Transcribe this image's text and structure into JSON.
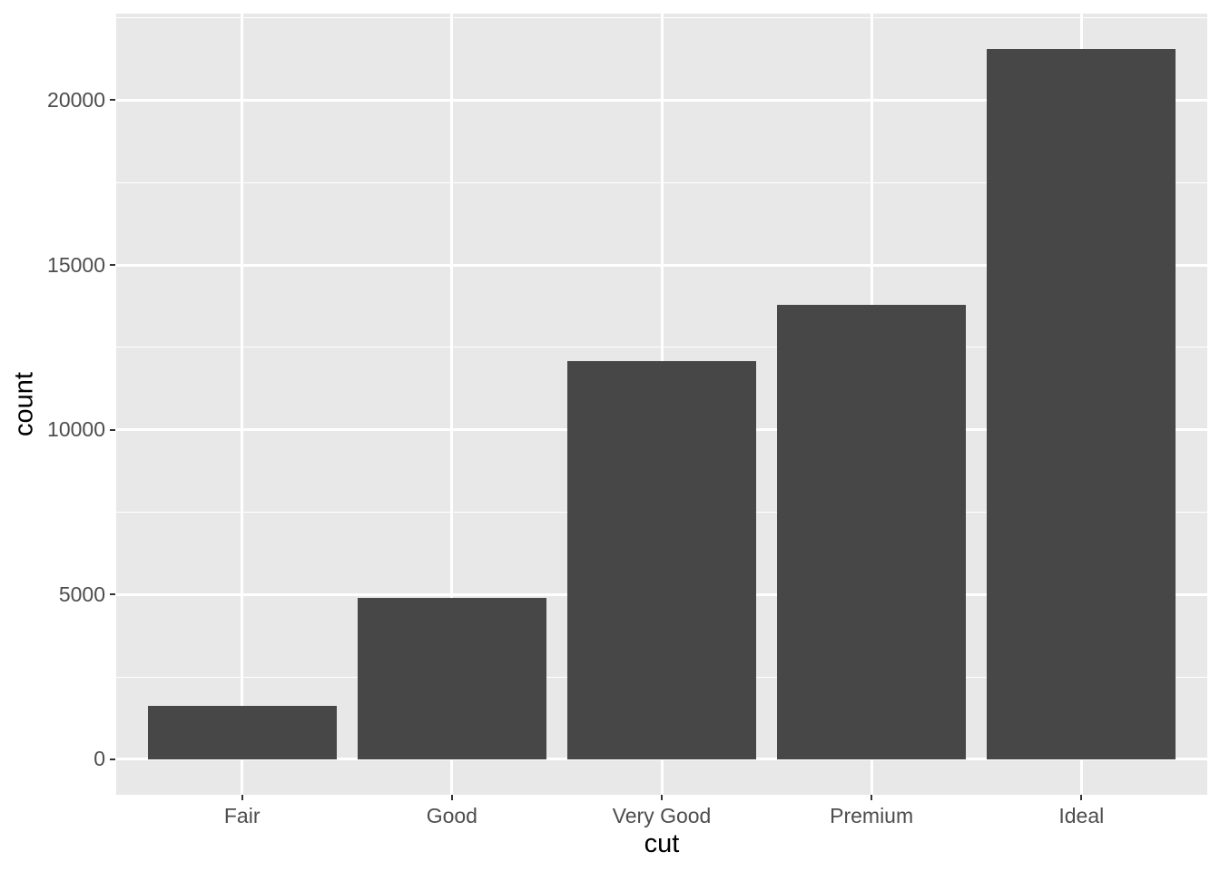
{
  "chart_data": {
    "type": "bar",
    "title": "",
    "xlabel": "cut",
    "ylabel": "count",
    "categories": [
      "Fair",
      "Good",
      "Very Good",
      "Premium",
      "Ideal"
    ],
    "values": [
      1610,
      4906,
      12082,
      13791,
      21551
    ],
    "y_major_ticks": [
      0,
      5000,
      10000,
      15000,
      20000
    ],
    "y_minor_ticks": [
      2500,
      7500,
      12500,
      17500,
      22500
    ],
    "ylim_data": [
      0,
      21551
    ],
    "y_expansion_mult": 0.05,
    "bar_width_ratio": 0.9,
    "x_expansion_add": 0.6,
    "grid": "on",
    "legend": "none",
    "colors": {
      "bar_fill": "#474747",
      "panel_background": "#E8E8E8",
      "gridline": "#FFFFFF",
      "tick_label": "#4D4D4D",
      "tick_mark": "#333333",
      "axis_title": "#000000",
      "figure_background": "#FFFFFF"
    }
  }
}
